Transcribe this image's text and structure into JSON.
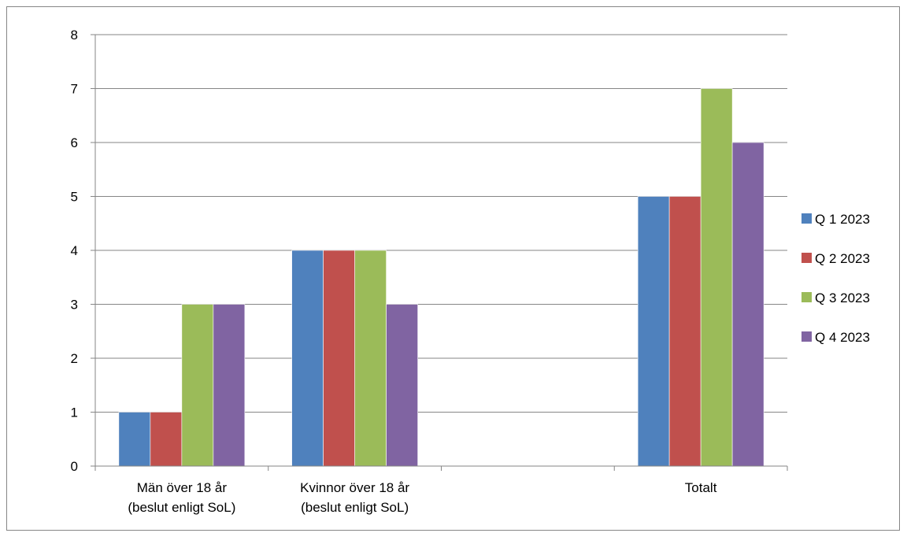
{
  "chart_data": {
    "type": "bar",
    "title": "",
    "xlabel": "",
    "ylabel": "",
    "categories": [
      [
        "Män över 18 år",
        "(beslut enligt SoL)"
      ],
      [
        "Kvinnor över 18 år",
        "(beslut enligt SoL)"
      ],
      [
        ""
      ],
      [
        "Totalt"
      ]
    ],
    "series": [
      {
        "name": "Q 1 2023",
        "color": "#4F81BD",
        "values": [
          1,
          4,
          null,
          5
        ]
      },
      {
        "name": "Q 2 2023",
        "color": "#C0504D",
        "values": [
          1,
          4,
          null,
          5
        ]
      },
      {
        "name": "Q 3 2023",
        "color": "#9BBB59",
        "values": [
          3,
          4,
          null,
          7
        ]
      },
      {
        "name": "Q 4 2023",
        "color": "#8064A2",
        "values": [
          3,
          3,
          null,
          6
        ]
      }
    ],
    "ylim": [
      0,
      8
    ],
    "yticks": [
      "0",
      "1",
      "2",
      "3",
      "4",
      "5",
      "6",
      "7",
      "8"
    ],
    "grid": true,
    "legend": "right"
  }
}
